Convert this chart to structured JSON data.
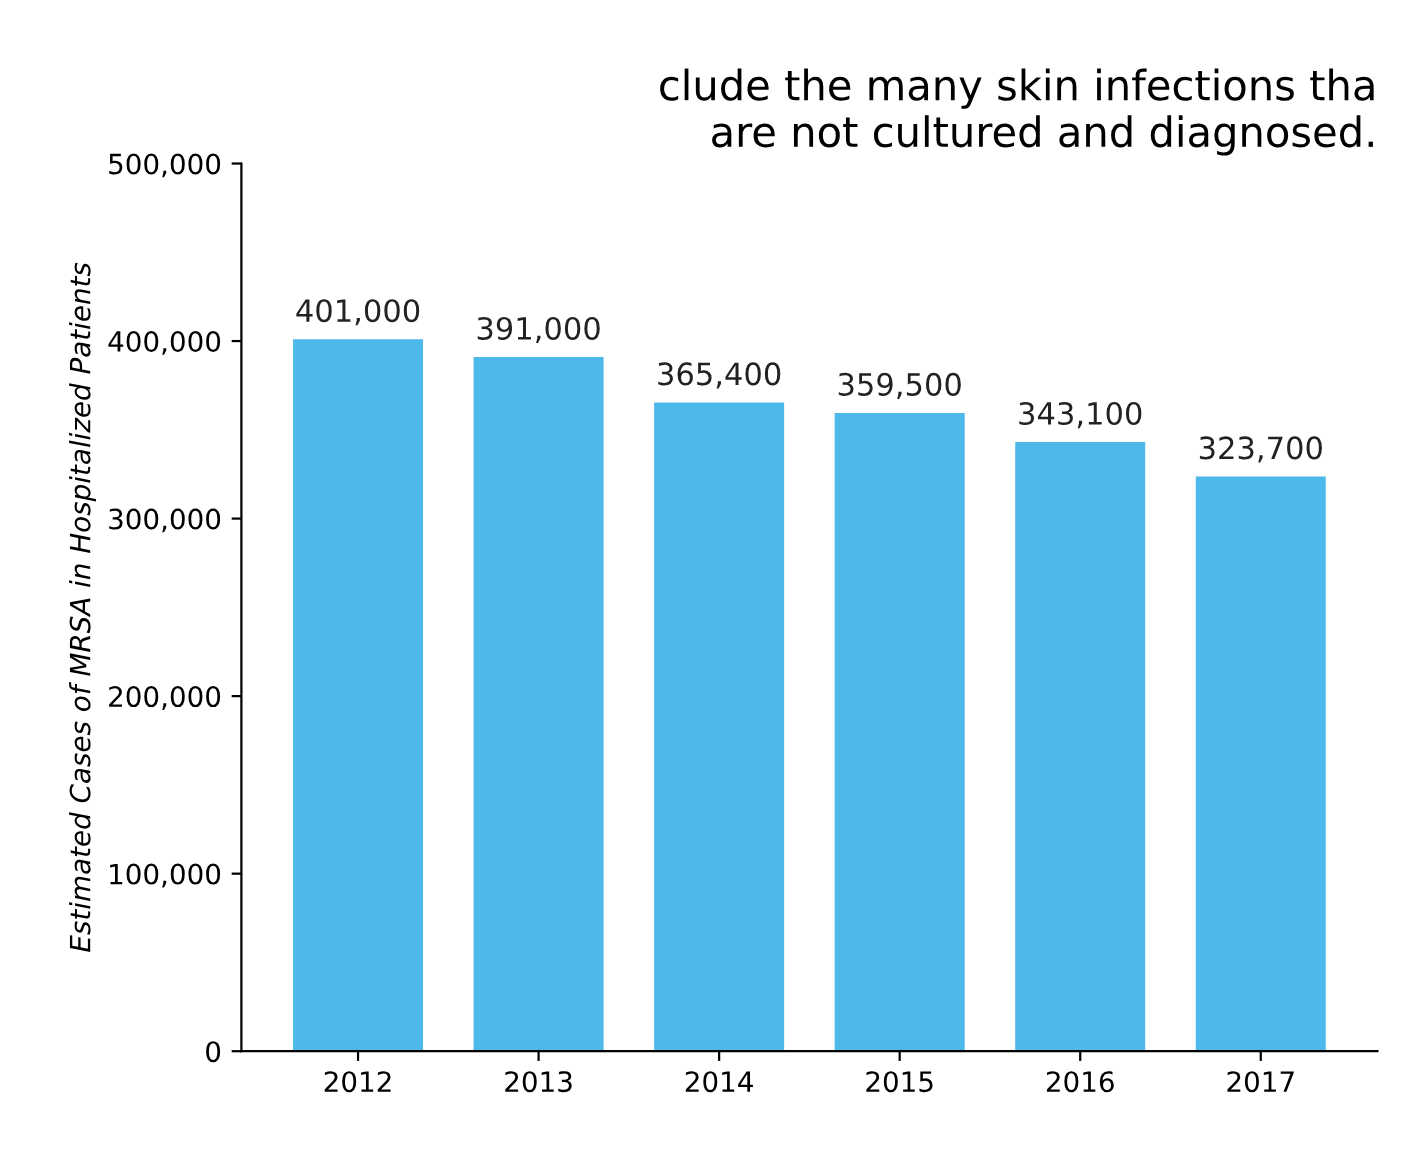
{
  "chart_data": {
    "type": "bar",
    "title": "clude the many skin infections tha\nare not cultured and diagnosed.",
    "ylabel": "Estimated Cases of MRSA in Hospitalized Patients",
    "categories": [
      "2012",
      "2013",
      "2014",
      "2015",
      "2016",
      "2017"
    ],
    "values": [
      401000,
      391000,
      365400,
      359500,
      343100,
      323700
    ],
    "value_labels": [
      "401,000",
      "391,000",
      "365,400",
      "359,500",
      "343,100",
      "323,700"
    ],
    "color": "#4db8ea",
    "ylim": [
      0,
      500000
    ],
    "yticks": [
      0,
      {
        "value": 100000,
        "label": "100,000"
      },
      {
        "value": 200000,
        "label": "200,000"
      },
      {
        "value": 300000,
        "label": "300,000"
      },
      {
        "value": 400000,
        "label": "400,000"
      },
      {
        "value": 500000,
        "label": "500,000"
      }
    ],
    "grid": false
  }
}
